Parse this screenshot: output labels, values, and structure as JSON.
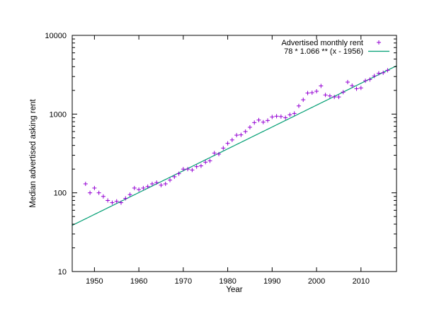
{
  "chart_data": {
    "type": "scatter",
    "title": "",
    "xlabel": "Year",
    "ylabel": "Median advertised asking rent",
    "xlim": [
      1945,
      2018
    ],
    "ylim": [
      10,
      10000
    ],
    "yscale": "log",
    "grid": false,
    "legend_position": "top-right",
    "x_ticks": [
      1950,
      1960,
      1970,
      1980,
      1990,
      2000,
      2010
    ],
    "y_ticks": [
      10,
      100,
      1000,
      10000
    ],
    "x_tick_labels": [
      "1950",
      "1960",
      "1970",
      "1980",
      "1990",
      "2000",
      "2010"
    ],
    "y_tick_labels": [
      "10",
      "100",
      "1000",
      "10000"
    ],
    "series": [
      {
        "name": "Advertised monthly rent",
        "kind": "points",
        "marker": "plus",
        "color": "#9400d3",
        "x": [
          1948,
          1949,
          1950,
          1951,
          1952,
          1953,
          1954,
          1955,
          1956,
          1957,
          1958,
          1959,
          1960,
          1961,
          1962,
          1963,
          1964,
          1965,
          1966,
          1967,
          1968,
          1969,
          1970,
          1971,
          1972,
          1973,
          1974,
          1975,
          1976,
          1977,
          1978,
          1979,
          1980,
          1981,
          1982,
          1983,
          1984,
          1985,
          1986,
          1987,
          1988,
          1989,
          1990,
          1991,
          1992,
          1993,
          1994,
          1995,
          1996,
          1997,
          1998,
          1999,
          2000,
          2001,
          2002,
          2003,
          2004,
          2005,
          2006,
          2007,
          2008,
          2009,
          2010,
          2011,
          2012,
          2013,
          2014,
          2015,
          2016
        ],
        "y": [
          130,
          100,
          115,
          100,
          90,
          80,
          75,
          78,
          75,
          85,
          95,
          115,
          110,
          115,
          120,
          130,
          135,
          125,
          130,
          145,
          160,
          175,
          200,
          200,
          195,
          215,
          220,
          245,
          255,
          320,
          310,
          370,
          425,
          470,
          540,
          545,
          600,
          680,
          780,
          840,
          790,
          830,
          920,
          940,
          930,
          900,
          980,
          1020,
          1270,
          1520,
          1850,
          1870,
          1950,
          2280,
          1750,
          1700,
          1650,
          1650,
          1900,
          2550,
          2300,
          2100,
          2150,
          2650,
          2750,
          3050,
          3300,
          3350,
          3600
        ]
      },
      {
        "name": "78 * 1.066 ** (x - 1956)",
        "kind": "line",
        "color": "#009e73",
        "base": 78,
        "growth": 1.066,
        "x0": 1956,
        "x_range": [
          1945,
          2018
        ]
      }
    ]
  }
}
